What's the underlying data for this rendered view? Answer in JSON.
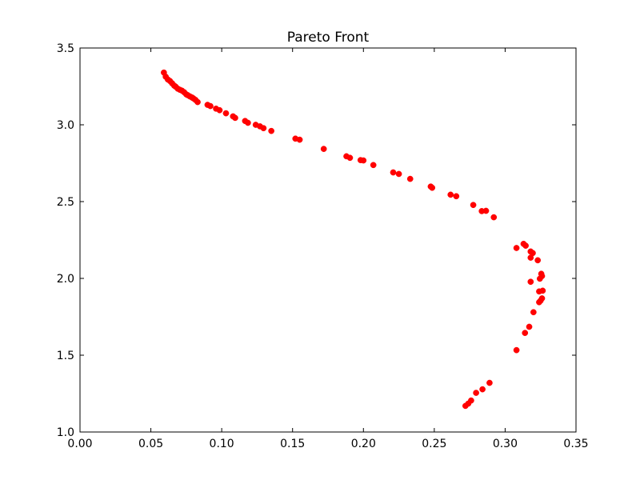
{
  "chart_data": {
    "type": "scatter",
    "title": "Pareto Front",
    "xlabel": "",
    "ylabel": "",
    "xlim": [
      0.0,
      0.35
    ],
    "ylim": [
      1.0,
      3.5
    ],
    "grid": false,
    "legend": "none",
    "x_ticks": [
      "0.00",
      "0.05",
      "0.10",
      "0.15",
      "0.20",
      "0.25",
      "0.30",
      "0.35"
    ],
    "x_tick_values": [
      0.0,
      0.05,
      0.1,
      0.15,
      0.2,
      0.25,
      0.3,
      0.35
    ],
    "y_ticks": [
      "1.0",
      "1.5",
      "2.0",
      "2.5",
      "3.0",
      "3.5"
    ],
    "y_tick_values": [
      1.0,
      1.5,
      2.0,
      2.5,
      3.0,
      3.5
    ],
    "marker_color": "#ff0000",
    "series": [
      {
        "points": [
          [
            0.0592,
            3.34
          ],
          [
            0.0605,
            3.313
          ],
          [
            0.062,
            3.295
          ],
          [
            0.0635,
            3.285
          ],
          [
            0.065,
            3.27
          ],
          [
            0.0665,
            3.255
          ],
          [
            0.0675,
            3.248
          ],
          [
            0.069,
            3.235
          ],
          [
            0.0705,
            3.228
          ],
          [
            0.072,
            3.222
          ],
          [
            0.0735,
            3.212
          ],
          [
            0.075,
            3.198
          ],
          [
            0.076,
            3.193
          ],
          [
            0.0775,
            3.185
          ],
          [
            0.079,
            3.178
          ],
          [
            0.08,
            3.172
          ],
          [
            0.0815,
            3.162
          ],
          [
            0.083,
            3.148
          ],
          [
            0.09,
            3.13
          ],
          [
            0.092,
            3.122
          ],
          [
            0.096,
            3.105
          ],
          [
            0.0985,
            3.095
          ],
          [
            0.103,
            3.075
          ],
          [
            0.108,
            3.055
          ],
          [
            0.1095,
            3.045
          ],
          [
            0.1165,
            3.025
          ],
          [
            0.1185,
            3.013
          ],
          [
            0.124,
            3.0
          ],
          [
            0.127,
            2.99
          ],
          [
            0.1295,
            2.978
          ],
          [
            0.135,
            2.96
          ],
          [
            0.152,
            2.91
          ],
          [
            0.155,
            2.903
          ],
          [
            0.172,
            2.843
          ],
          [
            0.188,
            2.795
          ],
          [
            0.1905,
            2.785
          ],
          [
            0.198,
            2.77
          ],
          [
            0.2,
            2.768
          ],
          [
            0.207,
            2.738
          ],
          [
            0.221,
            2.69
          ],
          [
            0.225,
            2.68
          ],
          [
            0.233,
            2.648
          ],
          [
            0.2475,
            2.598
          ],
          [
            0.2485,
            2.59
          ],
          [
            0.2615,
            2.545
          ],
          [
            0.2655,
            2.535
          ],
          [
            0.2775,
            2.478
          ],
          [
            0.2835,
            2.438
          ],
          [
            0.2865,
            2.44
          ],
          [
            0.292,
            2.398
          ],
          [
            0.308,
            2.198
          ],
          [
            0.313,
            2.225
          ],
          [
            0.3145,
            2.213
          ],
          [
            0.318,
            2.175
          ],
          [
            0.3195,
            2.165
          ],
          [
            0.318,
            2.135
          ],
          [
            0.323,
            2.118
          ],
          [
            0.3255,
            2.03
          ],
          [
            0.326,
            2.015
          ],
          [
            0.3245,
            1.998
          ],
          [
            0.318,
            1.978
          ],
          [
            0.3265,
            1.92
          ],
          [
            0.324,
            1.915
          ],
          [
            0.326,
            1.87
          ],
          [
            0.325,
            1.855
          ],
          [
            0.324,
            1.845
          ],
          [
            0.32,
            1.78
          ],
          [
            0.317,
            1.685
          ],
          [
            0.314,
            1.645
          ],
          [
            0.308,
            1.533
          ],
          [
            0.289,
            1.32
          ],
          [
            0.284,
            1.278
          ],
          [
            0.2795,
            1.255
          ],
          [
            0.276,
            1.205
          ],
          [
            0.274,
            1.185
          ],
          [
            0.272,
            1.17
          ]
        ]
      }
    ]
  }
}
